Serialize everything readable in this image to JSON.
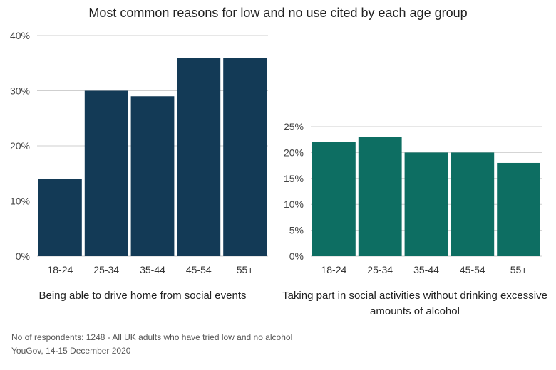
{
  "title": "Most common reasons for low and no use cited by each age group",
  "footnote": {
    "note": "No of respondents: 1248 - All UK adults who have tried low and no alcohol",
    "source": "YouGov, 14-15 December 2020"
  },
  "chart_data": [
    {
      "type": "bar",
      "title": "Being able to drive home from social events",
      "categories": [
        "18-24",
        "25-34",
        "35-44",
        "45-54",
        "55+"
      ],
      "values": [
        14,
        30,
        29,
        36,
        36
      ],
      "ylim": [
        0,
        40
      ],
      "yticks": [
        0,
        10,
        20,
        30,
        40
      ],
      "tick_format": "%",
      "grid": true,
      "color": "#133a56"
    },
    {
      "type": "bar",
      "title": "Taking part in social activities without drinking excessive amounts of alcohol",
      "categories": [
        "18-24",
        "25-34",
        "35-44",
        "45-54",
        "55+"
      ],
      "values": [
        22,
        23,
        20,
        20,
        18
      ],
      "ylim": [
        0,
        25
      ],
      "yticks": [
        0,
        5,
        10,
        15,
        20,
        25
      ],
      "tick_format": "%",
      "grid": true,
      "color": "#0d6e62"
    }
  ]
}
